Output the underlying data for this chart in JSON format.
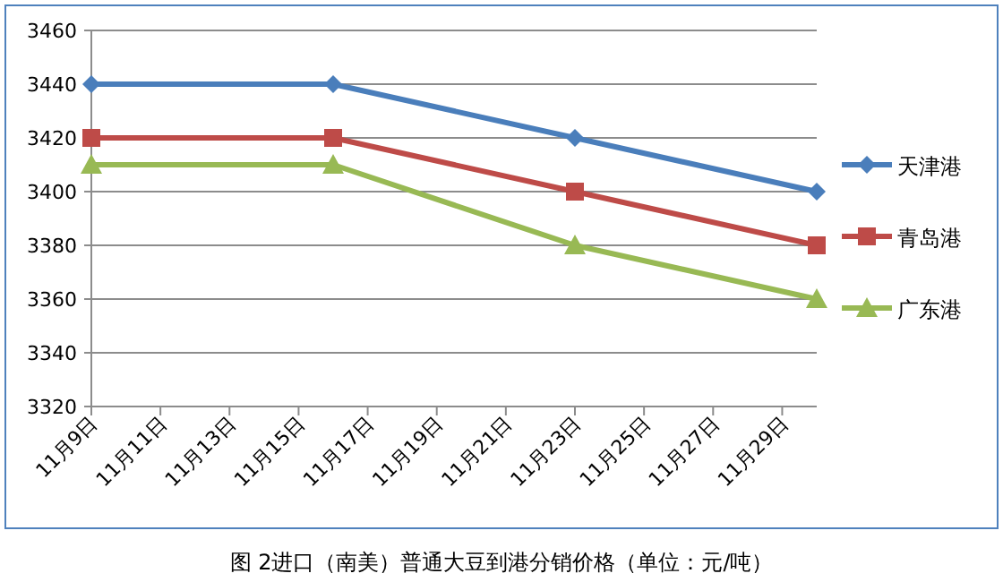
{
  "chart_data": {
    "type": "line",
    "title": "图 2进口（南美）普通大豆到港分销价格（单位：元/吨）",
    "x": [
      "--11-09",
      "--11-16",
      "--11-23",
      "--11-30"
    ],
    "series": [
      {
        "name": "天津港",
        "color": "#4a7ebb",
        "values": [
          3440,
          3440,
          3420,
          3400
        ],
        "marker": "diamond"
      },
      {
        "name": "青岛港",
        "color": "#be4b48",
        "values": [
          3420,
          3420,
          3400,
          3380
        ],
        "marker": "square"
      },
      {
        "name": "广东港",
        "color": "#98b954",
        "values": [
          3410,
          3410,
          3380,
          3360
        ],
        "marker": "triangle"
      }
    ],
    "xlim": [
      "--11-09",
      "--11-30"
    ],
    "xticks": [
      {
        "value": "--11-09",
        "label": "11月9日"
      },
      {
        "value": "--11-11",
        "label": "11月11日"
      },
      {
        "value": "--11-13",
        "label": "11月13日"
      },
      {
        "value": "--11-15",
        "label": "11月15日"
      },
      {
        "value": "--11-17",
        "label": "11月17日"
      },
      {
        "value": "--11-19",
        "label": "11月19日"
      },
      {
        "value": "--11-21",
        "label": "11月21日"
      },
      {
        "value": "--11-23",
        "label": "11月23日"
      },
      {
        "value": "--11-25",
        "label": "11月25日"
      },
      {
        "value": "--11-27",
        "label": "11月27日"
      },
      {
        "value": "--11-29",
        "label": "11月29日"
      }
    ],
    "ylim": [
      3320,
      3460
    ],
    "yticks": [
      3320,
      3340,
      3360,
      3380,
      3400,
      3420,
      3440,
      3460
    ],
    "grid": "y",
    "legend": "right",
    "line_style": "solid"
  }
}
